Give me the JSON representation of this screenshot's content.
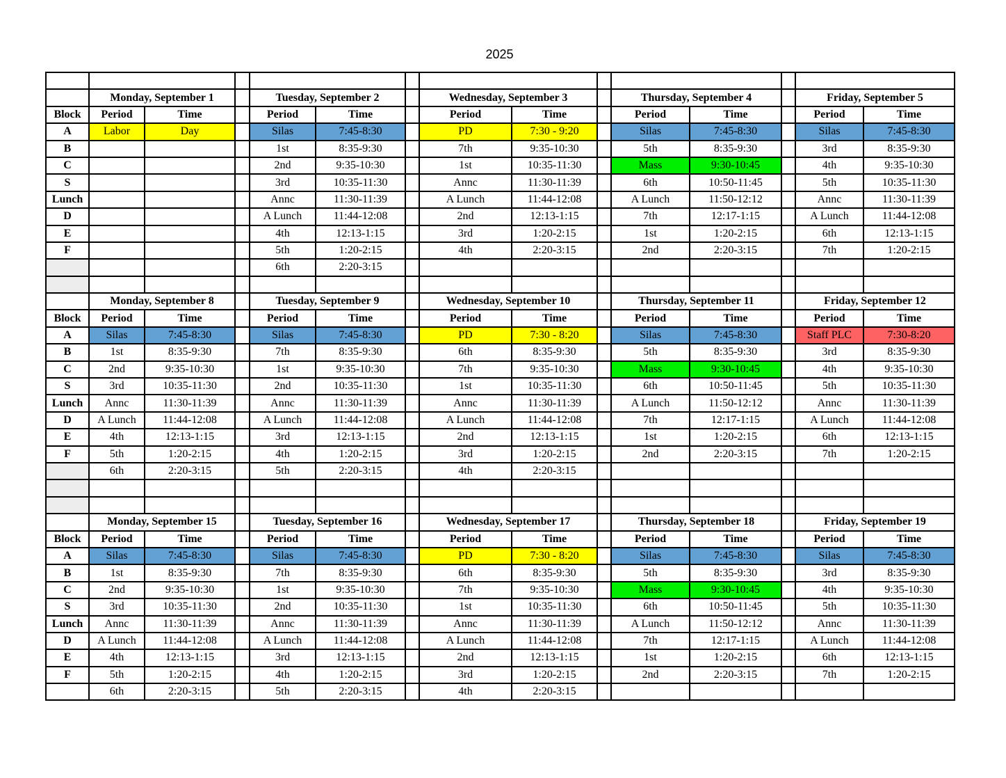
{
  "page_title": "2025",
  "colors": {
    "highlight_blue": "#63A1D4",
    "highlight_yellow": "#FFFF00",
    "highlight_green": "#00EE00",
    "highlight_red": "#FF6262",
    "block_shade": "#EDEDED"
  },
  "table": {
    "block_header": "Block",
    "period_header": "Period",
    "time_header": "Time",
    "block_labels": [
      "A",
      "B",
      "C",
      "S",
      "Lunch",
      "D",
      "E",
      "F"
    ],
    "weeks": [
      {
        "top_empty_row": true,
        "extra_row_block_shaded": true,
        "trailing_empty_rows": 1,
        "days": [
          {
            "title": "Monday, September 1",
            "rows": [
              {
                "p": "Labor",
                "t": "Day",
                "c": "yellow"
              },
              null,
              null,
              null,
              null,
              null,
              null,
              null,
              null
            ]
          },
          {
            "title": "Tuesday, September 2",
            "rows": [
              {
                "p": "Silas",
                "t": "7:45-8:30",
                "c": "blue"
              },
              {
                "p": "1st",
                "t": "8:35-9:30"
              },
              {
                "p": "2nd",
                "t": "9:35-10:30"
              },
              {
                "p": "3rd",
                "t": "10:35-11:30"
              },
              {
                "p": "Annc",
                "t": "11:30-11:39"
              },
              {
                "p": "A Lunch",
                "t": "11:44-12:08"
              },
              {
                "p": "4th",
                "t": "12:13-1:15"
              },
              {
                "p": "5th",
                "t": "1:20-2:15"
              },
              {
                "p": "6th",
                "t": "2:20-3:15"
              }
            ]
          },
          {
            "title": "Wednesday, September 3",
            "rows": [
              {
                "p": "PD",
                "t": "7:30 - 9:20",
                "c": "yellow"
              },
              {
                "p": "7th",
                "t": "9:35-10:30"
              },
              {
                "p": "1st",
                "t": "10:35-11:30"
              },
              {
                "p": "Annc",
                "t": "11:30-11:39"
              },
              {
                "p": "A Lunch",
                "t": "11:44-12:08"
              },
              {
                "p": "2nd",
                "t": "12:13-1:15"
              },
              {
                "p": "3rd",
                "t": "1:20-2:15"
              },
              {
                "p": "4th",
                "t": "2:20-3:15"
              },
              null
            ]
          },
          {
            "title": "Thursday, September 4",
            "rows": [
              {
                "p": "Silas",
                "t": "7:45-8:30",
                "c": "blue"
              },
              {
                "p": "5th",
                "t": "8:35-9:30"
              },
              {
                "p": "Mass",
                "t": "9:30-10:45",
                "c": "green"
              },
              {
                "p": "6th",
                "t": "10:50-11:45"
              },
              {
                "p": "A Lunch",
                "t": "11:50-12:12"
              },
              {
                "p": "7th",
                "t": "12:17-1:15"
              },
              {
                "p": "1st",
                "t": "1:20-2:15"
              },
              {
                "p": "2nd",
                "t": "2:20-3:15"
              },
              null
            ]
          },
          {
            "title": "Friday, September 5",
            "rows": [
              {
                "p": "Silas",
                "t": "7:45-8:30",
                "c": "blue"
              },
              {
                "p": "3rd",
                "t": "8:35-9:30"
              },
              {
                "p": "4th",
                "t": "9:35-10:30"
              },
              {
                "p": "5th",
                "t": "10:35-11:30"
              },
              {
                "p": "Annc",
                "t": "11:30-11:39"
              },
              {
                "p": "A Lunch",
                "t": "11:44-12:08"
              },
              {
                "p": "6th",
                "t": "12:13-1:15"
              },
              {
                "p": "7th",
                "t": "1:20-2:15"
              },
              null
            ]
          }
        ]
      },
      {
        "top_empty_row": false,
        "extra_row_block_shaded": true,
        "trailing_empty_rows": 2,
        "days": [
          {
            "title": "Monday, September 8",
            "rows": [
              {
                "p": "Silas",
                "t": "7:45-8:30",
                "c": "blue"
              },
              {
                "p": "1st",
                "t": "8:35-9:30"
              },
              {
                "p": "2nd",
                "t": "9:35-10:30"
              },
              {
                "p": "3rd",
                "t": "10:35-11:30"
              },
              {
                "p": "Annc",
                "t": "11:30-11:39"
              },
              {
                "p": "A Lunch",
                "t": "11:44-12:08"
              },
              {
                "p": "4th",
                "t": "12:13-1:15"
              },
              {
                "p": "5th",
                "t": "1:20-2:15"
              },
              {
                "p": "6th",
                "t": "2:20-3:15"
              }
            ]
          },
          {
            "title": "Tuesday, September 9",
            "rows": [
              {
                "p": "Silas",
                "t": "7:45-8:30",
                "c": "blue"
              },
              {
                "p": "7th",
                "t": "8:35-9:30"
              },
              {
                "p": "1st",
                "t": "9:35-10:30"
              },
              {
                "p": "2nd",
                "t": "10:35-11:30"
              },
              {
                "p": "Annc",
                "t": "11:30-11:39"
              },
              {
                "p": "A Lunch",
                "t": "11:44-12:08"
              },
              {
                "p": "3rd",
                "t": "12:13-1:15"
              },
              {
                "p": "4th",
                "t": "1:20-2:15"
              },
              {
                "p": "5th",
                "t": "2:20-3:15"
              }
            ]
          },
          {
            "title": "Wednesday, September 10",
            "rows": [
              {
                "p": "PD",
                "t": "7:30 - 8:20",
                "c": "yellow"
              },
              {
                "p": "6th",
                "t": "8:35-9:30"
              },
              {
                "p": "7th",
                "t": "9:35-10:30"
              },
              {
                "p": "1st",
                "t": "10:35-11:30"
              },
              {
                "p": "Annc",
                "t": "11:30-11:39"
              },
              {
                "p": "A Lunch",
                "t": "11:44-12:08"
              },
              {
                "p": "2nd",
                "t": "12:13-1:15"
              },
              {
                "p": "3rd",
                "t": "1:20-2:15"
              },
              {
                "p": "4th",
                "t": "2:20-3:15"
              }
            ]
          },
          {
            "title": "Thursday, September 11",
            "rows": [
              {
                "p": "Silas",
                "t": "7:45-8:30",
                "c": "blue"
              },
              {
                "p": "5th",
                "t": "8:35-9:30"
              },
              {
                "p": "Mass",
                "t": "9:30-10:45",
                "c": "green"
              },
              {
                "p": "6th",
                "t": "10:50-11:45"
              },
              {
                "p": "A Lunch",
                "t": "11:50-12:12"
              },
              {
                "p": "7th",
                "t": "12:17-1:15"
              },
              {
                "p": "1st",
                "t": "1:20-2:15"
              },
              {
                "p": "2nd",
                "t": "2:20-3:15"
              },
              null
            ]
          },
          {
            "title": "Friday, September 12",
            "rows": [
              {
                "p": "Staff PLC",
                "t": "7:30-8:20",
                "c": "red"
              },
              {
                "p": "3rd",
                "t": "8:35-9:30"
              },
              {
                "p": "4th",
                "t": "9:35-10:30"
              },
              {
                "p": "5th",
                "t": "10:35-11:30"
              },
              {
                "p": "Annc",
                "t": "11:30-11:39"
              },
              {
                "p": "A Lunch",
                "t": "11:44-12:08"
              },
              {
                "p": "6th",
                "t": "12:13-1:15"
              },
              {
                "p": "7th",
                "t": "1:20-2:15"
              },
              null
            ]
          }
        ]
      },
      {
        "top_empty_row": false,
        "extra_row_block_shaded": false,
        "trailing_empty_rows": 0,
        "days": [
          {
            "title": "Monday, September 15",
            "rows": [
              {
                "p": "Silas",
                "t": "7:45-8:30",
                "c": "blue"
              },
              {
                "p": "1st",
                "t": "8:35-9:30"
              },
              {
                "p": "2nd",
                "t": "9:35-10:30"
              },
              {
                "p": "3rd",
                "t": "10:35-11:30"
              },
              {
                "p": "Annc",
                "t": "11:30-11:39"
              },
              {
                "p": "A Lunch",
                "t": "11:44-12:08"
              },
              {
                "p": "4th",
                "t": "12:13-1:15"
              },
              {
                "p": "5th",
                "t": "1:20-2:15"
              },
              {
                "p": "6th",
                "t": "2:20-3:15"
              }
            ]
          },
          {
            "title": "Tuesday, September 16",
            "rows": [
              {
                "p": "Silas",
                "t": "7:45-8:30",
                "c": "blue"
              },
              {
                "p": "7th",
                "t": "8:35-9:30"
              },
              {
                "p": "1st",
                "t": "9:35-10:30"
              },
              {
                "p": "2nd",
                "t": "10:35-11:30"
              },
              {
                "p": "Annc",
                "t": "11:30-11:39"
              },
              {
                "p": "A Lunch",
                "t": "11:44-12:08"
              },
              {
                "p": "3rd",
                "t": "12:13-1:15"
              },
              {
                "p": "4th",
                "t": "1:20-2:15"
              },
              {
                "p": "5th",
                "t": "2:20-3:15"
              }
            ]
          },
          {
            "title": "Wednesday, September 17",
            "rows": [
              {
                "p": "PD",
                "t": "7:30 - 8:20",
                "c": "yellow"
              },
              {
                "p": "6th",
                "t": "8:35-9:30"
              },
              {
                "p": "7th",
                "t": "9:35-10:30"
              },
              {
                "p": "1st",
                "t": "10:35-11:30"
              },
              {
                "p": "Annc",
                "t": "11:30-11:39"
              },
              {
                "p": "A Lunch",
                "t": "11:44-12:08"
              },
              {
                "p": "2nd",
                "t": "12:13-1:15"
              },
              {
                "p": "3rd",
                "t": "1:20-2:15"
              },
              {
                "p": "4th",
                "t": "2:20-3:15"
              }
            ]
          },
          {
            "title": "Thursday, September 18",
            "rows": [
              {
                "p": "Silas",
                "t": "7:45-8:30",
                "c": "blue"
              },
              {
                "p": "5th",
                "t": "8:35-9:30"
              },
              {
                "p": "Mass",
                "t": "9:30-10:45",
                "c": "green"
              },
              {
                "p": "6th",
                "t": "10:50-11:45"
              },
              {
                "p": "A Lunch",
                "t": "11:50-12:12"
              },
              {
                "p": "7th",
                "t": "12:17-1:15"
              },
              {
                "p": "1st",
                "t": "1:20-2:15"
              },
              {
                "p": "2nd",
                "t": "2:20-3:15"
              },
              null
            ]
          },
          {
            "title": "Friday, September 19",
            "rows": [
              {
                "p": "Silas",
                "t": "7:45-8:30",
                "c": "blue"
              },
              {
                "p": "3rd",
                "t": "8:35-9:30"
              },
              {
                "p": "4th",
                "t": "9:35-10:30"
              },
              {
                "p": "5th",
                "t": "10:35-11:30"
              },
              {
                "p": "Annc",
                "t": "11:30-11:39"
              },
              {
                "p": "A Lunch",
                "t": "11:44-12:08"
              },
              {
                "p": "6th",
                "t": "12:13-1:15"
              },
              {
                "p": "7th",
                "t": "1:20-2:15"
              },
              null
            ]
          }
        ]
      }
    ]
  }
}
